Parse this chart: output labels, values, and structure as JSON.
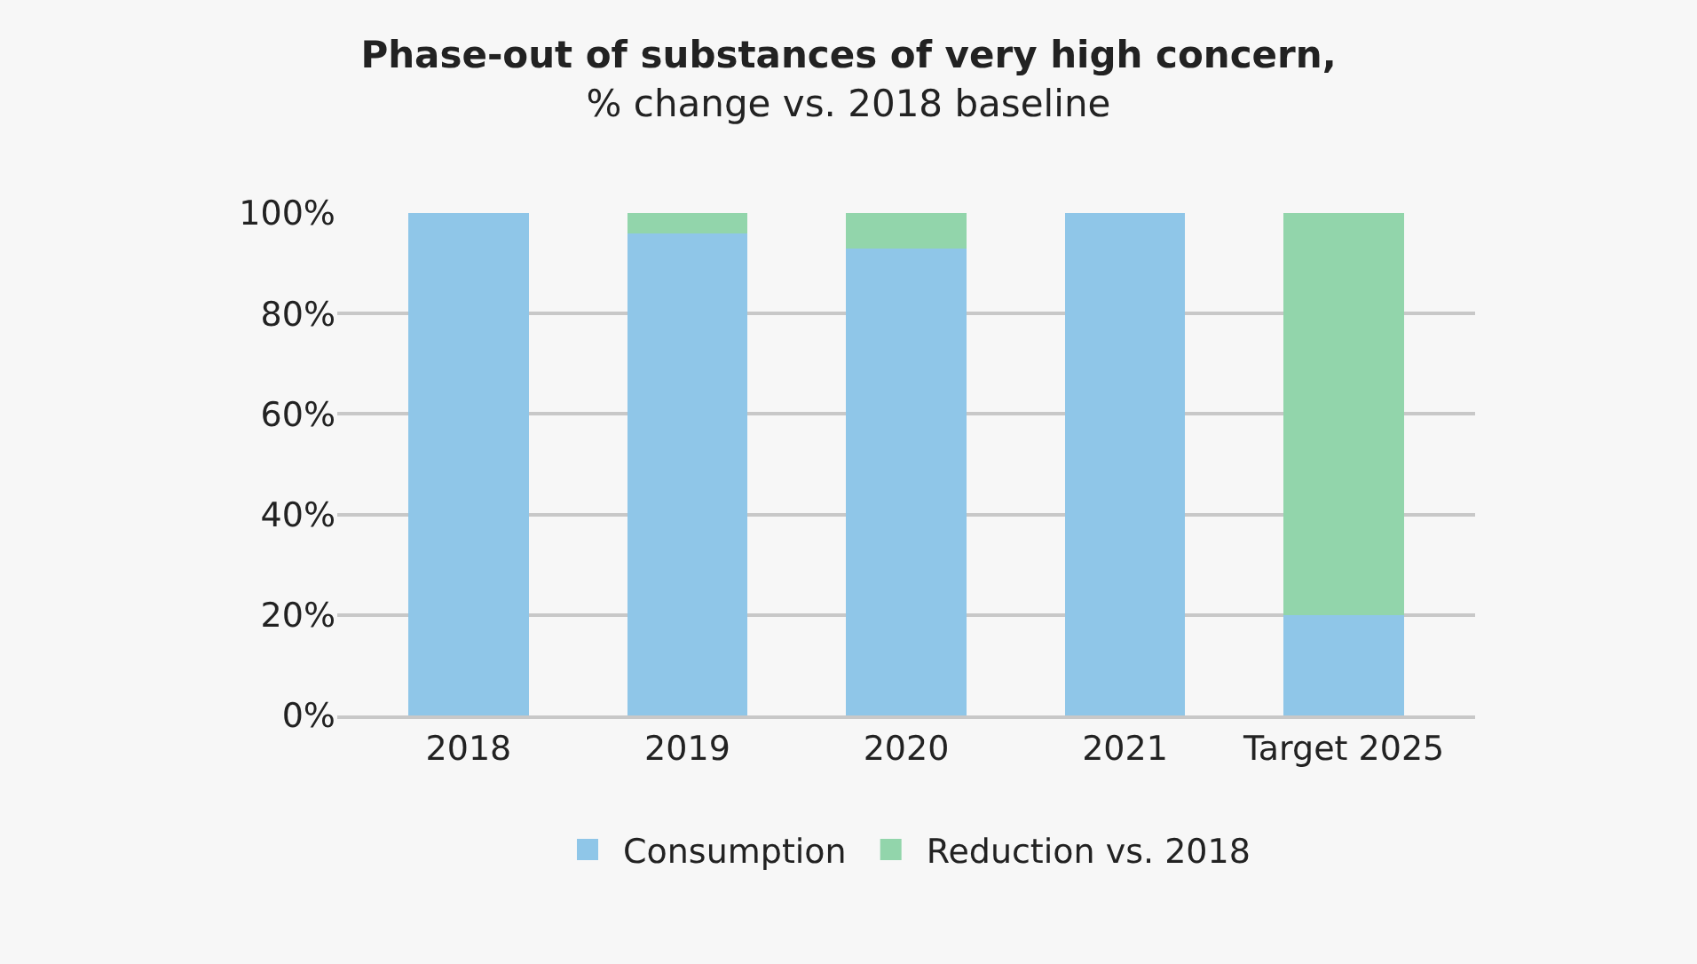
{
  "chart_data": {
    "type": "bar",
    "stacked": true,
    "title": "Phase-out of substances of very high concern,",
    "subtitle": "% change vs. 2018 baseline",
    "categories": [
      "2018",
      "2019",
      "2020",
      "2021",
      "Target 2025"
    ],
    "series": [
      {
        "name": "Consumption",
        "color": "#8fc6e8",
        "values": [
          100,
          96,
          93,
          100,
          20
        ]
      },
      {
        "name": "Reduction vs. 2018",
        "color": "#92d5ab",
        "values": [
          0,
          4,
          7,
          0,
          80
        ]
      }
    ],
    "ylim": [
      0,
      100
    ],
    "yticks": [
      {
        "value": 0,
        "label": "0%"
      },
      {
        "value": 20,
        "label": "20%"
      },
      {
        "value": 40,
        "label": "40%"
      },
      {
        "value": 60,
        "label": "60%"
      },
      {
        "value": 80,
        "label": "80%"
      },
      {
        "value": 100,
        "label": "100%"
      }
    ],
    "grid": "y",
    "legend": "bottom"
  }
}
